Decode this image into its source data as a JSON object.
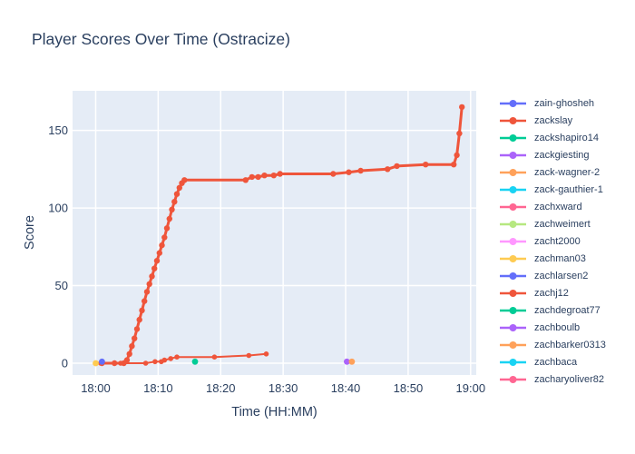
{
  "chart_data": {
    "type": "line",
    "title": "Player Scores Over Time (Ostracize)",
    "xlabel": "Time (HH:MM)",
    "ylabel": "Score",
    "x_unit": "minutes_after_18:00",
    "x_tick_minutes": [
      0,
      10,
      20,
      30,
      40,
      50,
      60
    ],
    "x_tick_labels": [
      "18:00",
      "18:10",
      "18:20",
      "18:30",
      "18:40",
      "18:50",
      "19:00"
    ],
    "y_ticks": [
      0,
      50,
      100,
      150
    ],
    "x_range_minutes": [
      -3.7,
      60.9
    ],
    "y_range": [
      -7.6,
      175.5
    ],
    "grid": true,
    "legend_position": "right",
    "colors": {
      "plot_bg": "#e5ecf6",
      "grid": "#ffffff",
      "text": "#2a3f5f",
      "page_bg": "#ffffff"
    },
    "legend": [
      {
        "label": "zain-ghosheh",
        "color": "#636EFA"
      },
      {
        "label": "zackslay",
        "color": "#EF553B"
      },
      {
        "label": "zackshapiro14",
        "color": "#00CC96"
      },
      {
        "label": "zackgiesting",
        "color": "#AB63FA"
      },
      {
        "label": "zack-wagner-2",
        "color": "#FFA15A"
      },
      {
        "label": "zack-gauthier-1",
        "color": "#19D3F3"
      },
      {
        "label": "zachxward",
        "color": "#FF6692"
      },
      {
        "label": "zachweimert",
        "color": "#B6E880"
      },
      {
        "label": "zacht2000",
        "color": "#FF97FF"
      },
      {
        "label": "zachman03",
        "color": "#FECB52"
      },
      {
        "label": "zachlarsen2",
        "color": "#636EFA"
      },
      {
        "label": "zachj12",
        "color": "#EF553B"
      },
      {
        "label": "zachdegroat77",
        "color": "#00CC96"
      },
      {
        "label": "zachboulb",
        "color": "#AB63FA"
      },
      {
        "label": "zachbarker0313",
        "color": "#FFA15A"
      },
      {
        "label": "zachbaca",
        "color": "#19D3F3"
      },
      {
        "label": "zacharyoliver82",
        "color": "#FF6692"
      }
    ],
    "series": [
      {
        "name": "zackslay",
        "color": "#EF553B",
        "line_width": 3,
        "marker_size": 3.2,
        "points": [
          [
            1,
            0
          ],
          [
            3,
            0
          ],
          [
            4.5,
            0
          ],
          [
            5,
            2
          ],
          [
            5.4,
            6
          ],
          [
            5.8,
            11
          ],
          [
            6.2,
            16
          ],
          [
            6.6,
            22
          ],
          [
            7,
            28
          ],
          [
            7.4,
            34
          ],
          [
            7.8,
            40
          ],
          [
            8.2,
            46
          ],
          [
            8.6,
            51
          ],
          [
            9,
            56
          ],
          [
            9.4,
            61
          ],
          [
            9.8,
            66
          ],
          [
            10.2,
            71
          ],
          [
            10.6,
            76
          ],
          [
            11,
            81
          ],
          [
            11.4,
            87
          ],
          [
            11.8,
            93
          ],
          [
            12.2,
            99
          ],
          [
            12.6,
            104
          ],
          [
            13,
            109
          ],
          [
            13.4,
            113
          ],
          [
            13.8,
            116
          ],
          [
            14.2,
            118
          ],
          [
            24,
            118
          ],
          [
            25,
            120
          ],
          [
            26,
            120
          ],
          [
            27,
            121
          ],
          [
            28.5,
            121
          ],
          [
            29.5,
            122
          ],
          [
            38,
            122
          ],
          [
            40.5,
            123
          ],
          [
            42.4,
            124
          ],
          [
            46.7,
            125
          ],
          [
            48.2,
            127
          ],
          [
            52.8,
            128
          ],
          [
            57.3,
            128
          ],
          [
            57.8,
            134
          ],
          [
            58.2,
            148
          ],
          [
            58.6,
            165
          ]
        ]
      },
      {
        "name": "zachj12",
        "color": "#EF553B",
        "line_width": 2,
        "marker_size": 2.8,
        "points": [
          [
            0.8,
            0
          ],
          [
            4,
            0
          ],
          [
            8,
            0
          ],
          [
            9.5,
            1
          ],
          [
            10.5,
            1
          ],
          [
            11,
            2
          ],
          [
            12,
            3
          ],
          [
            13,
            4
          ],
          [
            19,
            4
          ],
          [
            24.5,
            5
          ],
          [
            27.3,
            6
          ]
        ]
      },
      {
        "name": "zachman03",
        "color": "#FECB52",
        "line_width": 0,
        "marker_size": 3.4,
        "points": [
          [
            0,
            0
          ]
        ]
      },
      {
        "name": "zain-ghosheh",
        "color": "#636EFA",
        "line_width": 0,
        "marker_size": 3.4,
        "points": [
          [
            1,
            1
          ]
        ]
      },
      {
        "name": "zackshapiro14",
        "color": "#00CC96",
        "line_width": 0,
        "marker_size": 3.4,
        "points": [
          [
            15.9,
            1
          ]
        ]
      },
      {
        "name": "zackgiesting",
        "color": "#AB63FA",
        "line_width": 0,
        "marker_size": 3.4,
        "points": [
          [
            40.2,
            1
          ]
        ]
      },
      {
        "name": "zack-wagner-2",
        "color": "#FFA15A",
        "line_width": 0,
        "marker_size": 3.4,
        "points": [
          [
            41,
            1
          ]
        ]
      }
    ]
  }
}
